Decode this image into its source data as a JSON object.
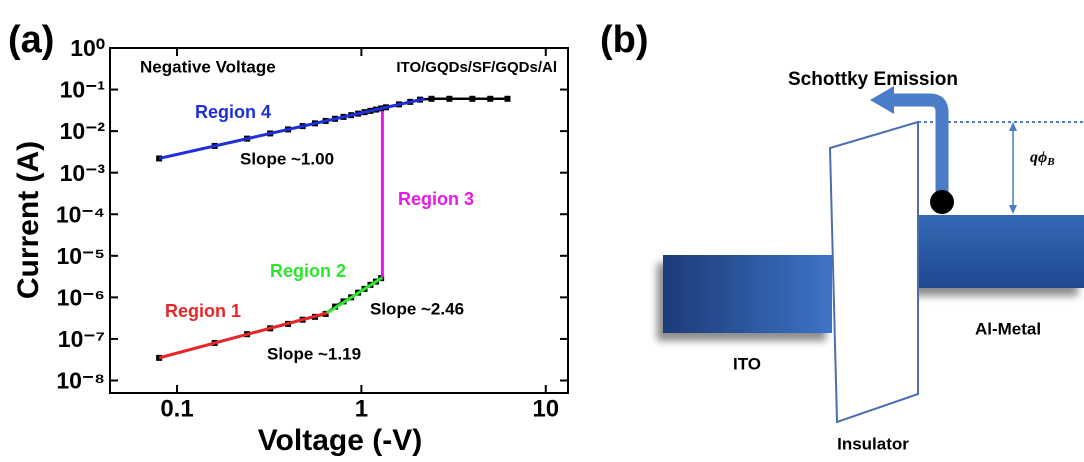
{
  "chart_data": {
    "type": "line",
    "panel_label": "(a)",
    "x_label": "Voltage (-V)",
    "y_label": "Current (A)",
    "xscale": "log",
    "yscale": "log",
    "xlim": [
      0.0433,
      13.2
    ],
    "ylim": [
      5e-09,
      1
    ],
    "xticks": [
      0.1,
      1,
      10
    ],
    "yticks": [
      {
        "value": 1,
        "label": "10⁰"
      },
      {
        "value": 0.1,
        "label": "10⁻¹"
      },
      {
        "value": 0.01,
        "label": "10⁻²"
      },
      {
        "value": 0.001,
        "label": "10⁻³"
      },
      {
        "value": 0.0001,
        "label": "10⁻⁴"
      },
      {
        "value": 1e-05,
        "label": "10⁻⁵"
      },
      {
        "value": 1e-06,
        "label": "10⁻⁶"
      },
      {
        "value": 1e-07,
        "label": "10⁻⁷"
      },
      {
        "value": 1e-08,
        "label": "10⁻⁸"
      }
    ],
    "annotations": [
      "Negative Voltage",
      "ITO/GQDs/SF/GQDs/Al",
      "Slope ~1.00",
      "Slope ~2.46",
      "Slope ~1.19"
    ],
    "series": [
      {
        "name": "Region 1",
        "color": "#e8262a",
        "x": [
          0.08,
          0.65
        ],
        "values": [
          3.5e-08,
          4.2e-07
        ]
      },
      {
        "name": "Region 2",
        "color": "#2ee62e",
        "x": [
          0.65,
          1.3
        ],
        "values": [
          4.2e-07,
          3e-06
        ]
      },
      {
        "name": "Region 3",
        "color": "#e619e6",
        "x": [
          1.3,
          1.3
        ],
        "values": [
          3e-06,
          0.03
        ]
      },
      {
        "name": "Region 4",
        "color": "#1f2fd6",
        "x": [
          0.08,
          2.2
        ],
        "values": [
          0.0022,
          0.06
        ]
      },
      {
        "color": "#000000",
        "marker": "square",
        "x": [
          0.08,
          0.16,
          0.24,
          0.32,
          0.4,
          0.48,
          0.56,
          0.64,
          0.72,
          0.8,
          0.88,
          0.96,
          1.04,
          1.12,
          1.2,
          1.28
        ],
        "values": [
          3.5e-08,
          8e-08,
          1.3e-07,
          1.8e-07,
          2.3e-07,
          2.9e-07,
          3.4e-07,
          4e-07,
          6e-07,
          8e-07,
          1e-06,
          1.3e-06,
          1.6e-06,
          2e-06,
          2.4e-06,
          2.9e-06
        ]
      },
      {
        "color": "#000000",
        "marker": "square",
        "x": [
          0.08,
          0.16,
          0.24,
          0.32,
          0.4,
          0.48,
          0.56,
          0.64,
          0.72,
          0.8,
          0.88,
          0.96,
          1.04,
          1.12,
          1.2,
          1.28,
          1.36,
          1.6,
          1.84,
          2.08,
          2.4,
          3,
          4,
          5,
          6.2
        ],
        "values": [
          0.0022,
          0.0044,
          0.0066,
          0.0088,
          0.011,
          0.0132,
          0.0154,
          0.0176,
          0.0198,
          0.022,
          0.0242,
          0.0264,
          0.0286,
          0.0308,
          0.033,
          0.0352,
          0.0374,
          0.044,
          0.0506,
          0.0572,
          0.06,
          0.06,
          0.06,
          0.06,
          0.06
        ]
      }
    ]
  },
  "diagram": {
    "panel_label": "(b)",
    "title": "Schottky Emission",
    "barrier": {
      "symbol": "qϕ",
      "subscript": "B"
    },
    "labels": [
      "ITO",
      "Insulator",
      "Al-Metal"
    ]
  }
}
